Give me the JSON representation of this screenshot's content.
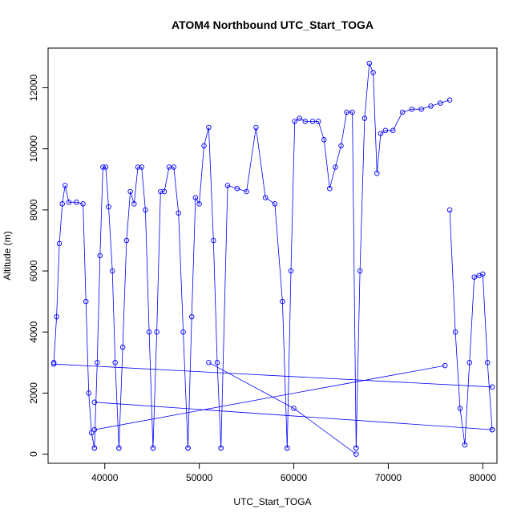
{
  "chart_data": {
    "type": "line",
    "title": "ATOM4 Northbound UTC_Start_TOGA",
    "xlabel": "UTC_Start_TOGA",
    "ylabel": "Altitude (m)",
    "xlim": [
      34000,
      81500
    ],
    "ylim": [
      -300,
      13300
    ],
    "x_ticks": [
      40000,
      50000,
      60000,
      70000,
      80000
    ],
    "y_ticks": [
      0,
      2000,
      4000,
      6000,
      8000,
      10000,
      12000
    ],
    "x_tick_labels": [
      "40000",
      "50000",
      "60000",
      "70000",
      "80000"
    ],
    "y_tick_labels": [
      "0",
      "2000",
      "4000",
      "6000",
      "8000",
      "10000",
      "12000"
    ],
    "color": "#0000ff",
    "marker": "open-circle",
    "series": [
      {
        "x": [
          34600,
          34900,
          35200,
          35500,
          35800,
          36200,
          37000,
          37700,
          38000,
          38300,
          38600,
          38900
        ],
        "y": [
          3000,
          4500,
          6900,
          8200,
          8800,
          8250,
          8250,
          8200,
          5000,
          2000,
          700,
          200
        ]
      },
      {
        "x": [
          38900,
          39200,
          39500,
          39800,
          40100,
          40400,
          40800,
          41100,
          41500
        ],
        "y": [
          200,
          3000,
          6500,
          9400,
          9400,
          8100,
          6000,
          3000,
          200
        ]
      },
      {
        "x": [
          41500,
          41900,
          42300,
          42700,
          43100,
          43500,
          43900,
          44300,
          44700,
          45100
        ],
        "y": [
          200,
          3500,
          7000,
          8600,
          8200,
          9400,
          9400,
          8000,
          4000,
          200
        ]
      },
      {
        "x": [
          45100,
          45500,
          45900,
          46300,
          46800,
          47300,
          47800,
          48300,
          48800
        ],
        "y": [
          200,
          4000,
          8600,
          8600,
          9400,
          9400,
          7900,
          4000,
          200
        ]
      },
      {
        "x": [
          48800,
          49200,
          49600,
          50000,
          50500,
          51000,
          51500,
          51900,
          52300
        ],
        "y": [
          200,
          4500,
          8400,
          8200,
          10100,
          10700,
          7000,
          3000,
          200
        ]
      },
      {
        "x": [
          52300,
          53000,
          54000,
          55000,
          56000,
          57000,
          58000,
          58800,
          59300
        ],
        "y": [
          200,
          8800,
          8700,
          8600,
          10700,
          8400,
          8200,
          5000,
          200
        ]
      },
      {
        "x": [
          59300,
          59700,
          60100,
          60600,
          61200,
          62000,
          62600,
          63200,
          63800,
          64400,
          65000,
          65600,
          66200,
          66600
        ],
        "y": [
          200,
          6000,
          10900,
          11000,
          10900,
          10900,
          10900,
          10300,
          8700,
          9400,
          10100,
          11200,
          11200,
          200
        ]
      },
      {
        "x": [
          66600,
          67000,
          67500,
          68000,
          68400,
          68800,
          69200,
          69700,
          70500,
          71500,
          72500,
          73500,
          74500,
          75500,
          76500
        ],
        "y": [
          200,
          6000,
          11000,
          12800,
          12500,
          9200,
          10500,
          10600,
          10600,
          11200,
          11300,
          11300,
          11400,
          11500,
          11600
        ]
      },
      {
        "x": [
          76500,
          77100,
          77600,
          78100,
          78600,
          79100,
          79600,
          80000,
          80500,
          81000
        ],
        "y": [
          8000,
          4000,
          1500,
          300,
          3000,
          5800,
          5850,
          5900,
          3000,
          800
        ]
      },
      {
        "x": [
          34600,
          81000
        ],
        "y": [
          2950,
          2200
        ]
      },
      {
        "x": [
          38900,
          81000
        ],
        "y": [
          1700,
          800
        ]
      },
      {
        "x": [
          38900,
          76000
        ],
        "y": [
          800,
          2900
        ]
      },
      {
        "x": [
          51000,
          60000,
          66600
        ],
        "y": [
          3000,
          1500,
          0
        ]
      }
    ]
  }
}
